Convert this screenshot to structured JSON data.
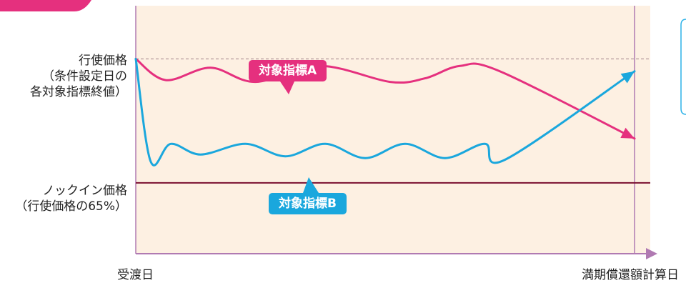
{
  "chart_data": {
    "type": "line",
    "title": "",
    "xlabel": "",
    "ylabel": "",
    "x_ticks": [
      "受渡日",
      "満期償還額計算日"
    ],
    "y_levels": [
      {
        "key": "strike",
        "lines": [
          "行使価格",
          "（条件設定日の",
          "各対象指標終値）"
        ],
        "value": 100
      },
      {
        "key": "knockin",
        "lines": [
          "ノックイン価格",
          "（行使価格の65%）"
        ],
        "value": 65
      }
    ],
    "ylim": [
      45,
      115
    ],
    "series": [
      {
        "name": "対象指標A",
        "color": "#e5307e",
        "points": [
          [
            0,
            100
          ],
          [
            0.06,
            94
          ],
          [
            0.15,
            97.5
          ],
          [
            0.24,
            93.5
          ],
          [
            0.37,
            98
          ],
          [
            0.51,
            93.5
          ],
          [
            0.58,
            94.5
          ],
          [
            0.65,
            98
          ],
          [
            0.73,
            96.5
          ],
          [
            1,
            77.5
          ]
        ]
      },
      {
        "name": "対象指標B",
        "color": "#1aa7dd",
        "points": [
          [
            0,
            100
          ],
          [
            0.03,
            71
          ],
          [
            0.07,
            76
          ],
          [
            0.13,
            73
          ],
          [
            0.22,
            76
          ],
          [
            0.3,
            72.5
          ],
          [
            0.38,
            76
          ],
          [
            0.46,
            72
          ],
          [
            0.54,
            76
          ],
          [
            0.62,
            72
          ],
          [
            0.7,
            76
          ],
          [
            0.74,
            71.5
          ],
          [
            1,
            96.5
          ]
        ]
      }
    ],
    "legend_placement": "inline labels",
    "grid": false
  },
  "colors": {
    "plot_bg": "#fdf0e2",
    "axis": "#b07ab2",
    "knockin_line": "#7a1030",
    "strike_line": "#a08088",
    "header_tab": "#e5307e",
    "note_box": "#2db2e8"
  }
}
